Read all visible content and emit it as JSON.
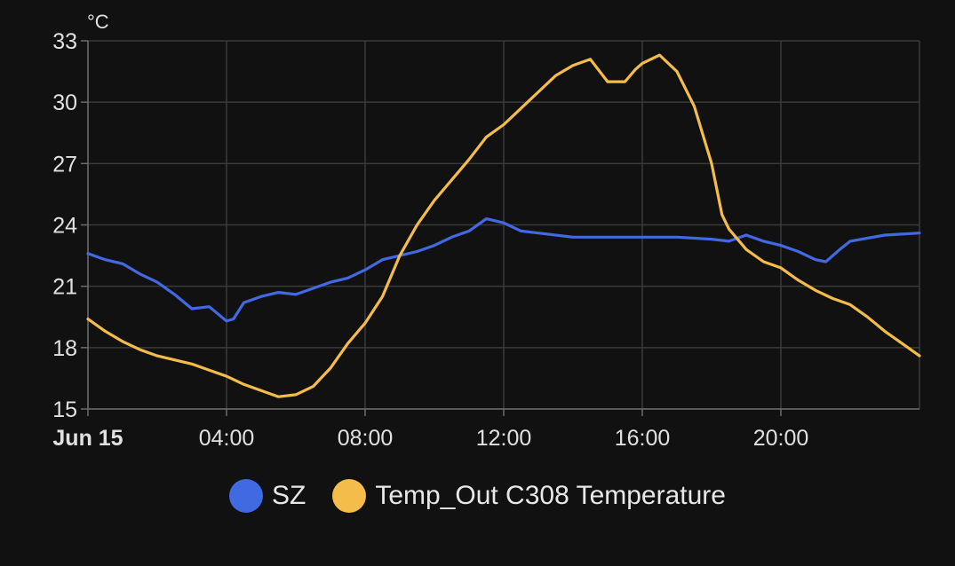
{
  "chart_data": {
    "type": "line",
    "unit": "°C",
    "ylim": [
      15,
      33
    ],
    "yticks": [
      15,
      18,
      21,
      24,
      27,
      30,
      33
    ],
    "xlim_hours": [
      0,
      24
    ],
    "xticks": [
      {
        "hour": 0,
        "label": "Jun 15",
        "bold": true
      },
      {
        "hour": 4,
        "label": "04:00",
        "bold": false
      },
      {
        "hour": 8,
        "label": "08:00",
        "bold": false
      },
      {
        "hour": 12,
        "label": "12:00",
        "bold": false
      },
      {
        "hour": 16,
        "label": "16:00",
        "bold": false
      },
      {
        "hour": 20,
        "label": "20:00",
        "bold": false
      }
    ],
    "grid": true,
    "legend_position": "bottom",
    "series": [
      {
        "name": "SZ",
        "color": "#4169E1",
        "points": [
          [
            0,
            22.6
          ],
          [
            0.5,
            22.3
          ],
          [
            1.0,
            22.1
          ],
          [
            1.5,
            21.6
          ],
          [
            2.0,
            21.2
          ],
          [
            2.5,
            20.6
          ],
          [
            3.0,
            19.9
          ],
          [
            3.5,
            20.0
          ],
          [
            4.0,
            19.3
          ],
          [
            4.2,
            19.4
          ],
          [
            4.5,
            20.2
          ],
          [
            5.0,
            20.5
          ],
          [
            5.5,
            20.7
          ],
          [
            6.0,
            20.6
          ],
          [
            6.5,
            20.9
          ],
          [
            7.0,
            21.2
          ],
          [
            7.5,
            21.4
          ],
          [
            8.0,
            21.8
          ],
          [
            8.5,
            22.3
          ],
          [
            9.0,
            22.5
          ],
          [
            9.5,
            22.7
          ],
          [
            10.0,
            23.0
          ],
          [
            10.5,
            23.4
          ],
          [
            11.0,
            23.7
          ],
          [
            11.5,
            24.3
          ],
          [
            12.0,
            24.1
          ],
          [
            12.5,
            23.7
          ],
          [
            13.0,
            23.6
          ],
          [
            14.0,
            23.4
          ],
          [
            15.0,
            23.4
          ],
          [
            16.0,
            23.4
          ],
          [
            17.0,
            23.4
          ],
          [
            18.0,
            23.3
          ],
          [
            18.5,
            23.2
          ],
          [
            19.0,
            23.5
          ],
          [
            19.5,
            23.2
          ],
          [
            20.0,
            23.0
          ],
          [
            20.5,
            22.7
          ],
          [
            21.0,
            22.3
          ],
          [
            21.3,
            22.2
          ],
          [
            21.7,
            22.8
          ],
          [
            22.0,
            23.2
          ],
          [
            23.0,
            23.5
          ],
          [
            24.0,
            23.6
          ]
        ]
      },
      {
        "name": "Temp_Out C308 Temperature",
        "color": "#F4BC48",
        "points": [
          [
            0,
            19.4
          ],
          [
            0.5,
            18.8
          ],
          [
            1.0,
            18.3
          ],
          [
            1.5,
            17.9
          ],
          [
            2.0,
            17.6
          ],
          [
            2.5,
            17.4
          ],
          [
            3.0,
            17.2
          ],
          [
            3.5,
            16.9
          ],
          [
            4.0,
            16.6
          ],
          [
            4.5,
            16.2
          ],
          [
            5.0,
            15.9
          ],
          [
            5.5,
            15.6
          ],
          [
            6.0,
            15.7
          ],
          [
            6.5,
            16.1
          ],
          [
            7.0,
            17.0
          ],
          [
            7.5,
            18.2
          ],
          [
            8.0,
            19.2
          ],
          [
            8.5,
            20.5
          ],
          [
            9.0,
            22.5
          ],
          [
            9.5,
            24.0
          ],
          [
            10.0,
            25.2
          ],
          [
            10.5,
            26.2
          ],
          [
            11.0,
            27.2
          ],
          [
            11.5,
            28.3
          ],
          [
            12.0,
            28.9
          ],
          [
            12.5,
            29.7
          ],
          [
            13.0,
            30.5
          ],
          [
            13.5,
            31.3
          ],
          [
            14.0,
            31.8
          ],
          [
            14.5,
            32.1
          ],
          [
            15.0,
            31.0
          ],
          [
            15.5,
            31.0
          ],
          [
            15.8,
            31.6
          ],
          [
            16.0,
            31.9
          ],
          [
            16.5,
            32.3
          ],
          [
            17.0,
            31.5
          ],
          [
            17.5,
            29.8
          ],
          [
            18.0,
            27.0
          ],
          [
            18.3,
            24.5
          ],
          [
            18.5,
            23.8
          ],
          [
            19.0,
            22.8
          ],
          [
            19.5,
            22.2
          ],
          [
            20.0,
            21.9
          ],
          [
            20.5,
            21.3
          ],
          [
            21.0,
            20.8
          ],
          [
            21.5,
            20.4
          ],
          [
            22.0,
            20.1
          ],
          [
            22.5,
            19.5
          ],
          [
            23.0,
            18.8
          ],
          [
            23.5,
            18.2
          ],
          [
            24.0,
            17.6
          ]
        ]
      }
    ]
  }
}
